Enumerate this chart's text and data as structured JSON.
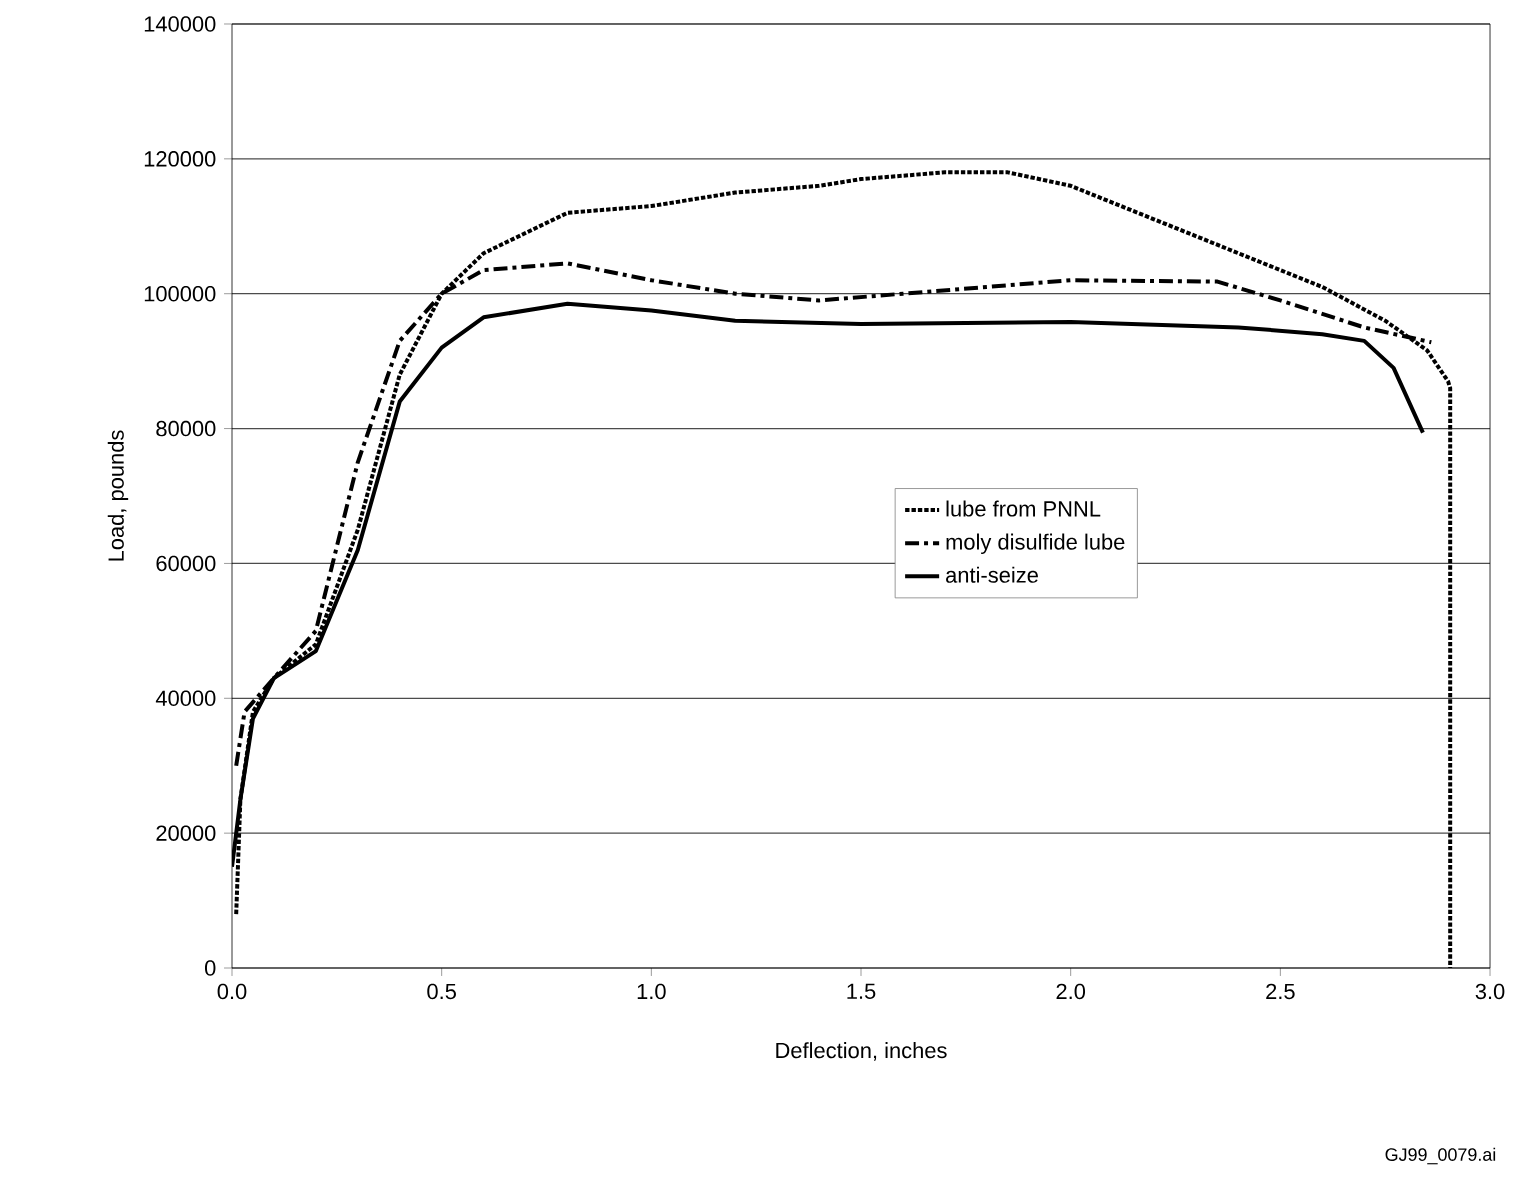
{
  "chart_data": {
    "type": "line",
    "xlabel": "Deflection, inches",
    "ylabel": "Load, pounds",
    "xlim": [
      0,
      3
    ],
    "ylim": [
      0,
      140000
    ],
    "xticks": [
      {
        "value": 0,
        "label": "0.0"
      },
      {
        "value": 0.5,
        "label": "0.5"
      },
      {
        "value": 1,
        "label": "1.0"
      },
      {
        "value": 1.5,
        "label": "1.5"
      },
      {
        "value": 2,
        "label": "2.0"
      },
      {
        "value": 2.5,
        "label": "2.5"
      },
      {
        "value": 3,
        "label": "3.0"
      }
    ],
    "yticks": [
      0,
      20000,
      40000,
      60000,
      80000,
      100000,
      120000,
      140000
    ],
    "grid": "y",
    "legend": "center right",
    "marker": "none",
    "annotations": [
      "GJ99_0079.ai"
    ],
    "series": [
      {
        "name": "lube from PNNL",
        "color": "#000000",
        "line_style": "dotted",
        "x": [
          0.01,
          0.02,
          0.05,
          0.1,
          0.2,
          0.3,
          0.4,
          0.5,
          0.6,
          0.8,
          1.0,
          1.2,
          1.4,
          1.5,
          1.7,
          1.85,
          2.0,
          2.2,
          2.4,
          2.6,
          2.75,
          2.85,
          2.9,
          2.905,
          2.905
        ],
        "values": [
          8000,
          25000,
          38000,
          43000,
          48000,
          65000,
          88000,
          100000,
          106000,
          112000,
          113000,
          115000,
          116000,
          117000,
          118000,
          118000,
          116000,
          111000,
          106000,
          101000,
          96000,
          91600,
          87000,
          86000,
          0
        ]
      },
      {
        "name": "moly disulfide lube",
        "color": "#000000",
        "line_style": "dashed",
        "x": [
          0.01,
          0.03,
          0.1,
          0.2,
          0.3,
          0.4,
          0.5,
          0.6,
          0.8,
          1.0,
          1.2,
          1.4,
          1.6,
          1.8,
          2.0,
          2.35,
          2.5,
          2.7,
          2.86
        ],
        "values": [
          30000,
          38000,
          43000,
          50000,
          75000,
          93000,
          100000,
          103500,
          104500,
          102000,
          100000,
          99000,
          100000,
          101000,
          102000,
          101800,
          99000,
          95000,
          92800
        ]
      },
      {
        "name": "anti-seize",
        "color": "#000000",
        "line_style": "solid",
        "x": [
          0.0,
          0.02,
          0.05,
          0.1,
          0.2,
          0.3,
          0.4,
          0.5,
          0.6,
          0.8,
          1.0,
          1.2,
          1.5,
          2.0,
          2.4,
          2.6,
          2.7,
          2.77,
          2.84
        ],
        "values": [
          15000,
          25000,
          37000,
          43000,
          47000,
          62000,
          84000,
          92000,
          96500,
          98500,
          97500,
          96000,
          95500,
          95800,
          95000,
          94000,
          93000,
          89000,
          79400
        ]
      }
    ]
  }
}
